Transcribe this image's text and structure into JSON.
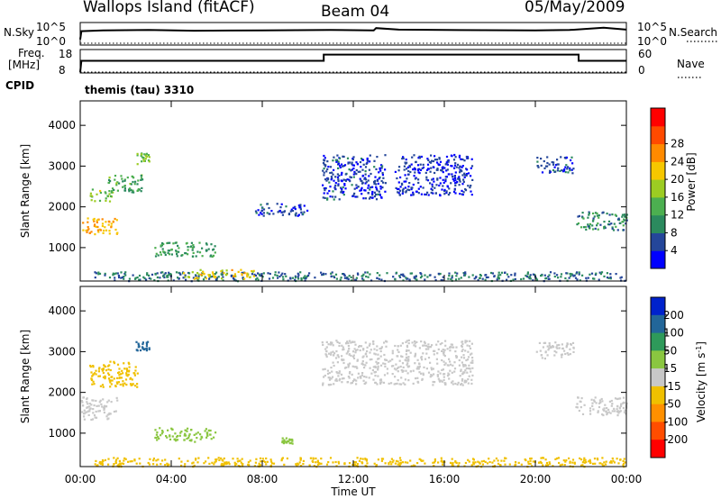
{
  "header": {
    "title": "Wallops Island (fitACF)",
    "beam": "Beam 04",
    "date": "05/May/2009"
  },
  "side_labels": {
    "nsky": "N.Sky",
    "nsearch": "N.Search",
    "freq_top": "Freq.",
    "freq_unit": "[MHz]",
    "cpid": "CPID",
    "nave": "Nave"
  },
  "cpid_text": "themis (tau) 3310",
  "chart_data": [
    {
      "type": "line",
      "panel": "noise",
      "left_ticks": [
        "10^5",
        "10^0"
      ],
      "right_ticks": [
        "10^5",
        "10^0"
      ],
      "series": [
        {
          "name": "N.Sky",
          "x": [
            0,
            0.05,
            1,
            3,
            5,
            8,
            11,
            12.9,
            13,
            14,
            16,
            20,
            21.5,
            23,
            24
          ],
          "y": [
            1,
            3.2,
            3.4,
            3.5,
            3.3,
            3.4,
            3.5,
            3.4,
            4.0,
            3.6,
            3.5,
            3.4,
            3.5,
            4.1,
            3.6
          ]
        },
        {
          "name": "N.Search",
          "x": [
            0,
            24
          ],
          "y": [
            0,
            0
          ]
        }
      ]
    },
    {
      "type": "line",
      "panel": "frequency",
      "left_ticks": [
        "18",
        "8"
      ],
      "right_ticks": [
        "60",
        "0"
      ],
      "series": [
        {
          "name": "Freq.",
          "x": [
            0,
            0.05,
            10.7,
            10.7,
            21.9,
            21.9,
            24
          ],
          "y": [
            0,
            10.9,
            10.9,
            16.9,
            16.9,
            10.9,
            10.9
          ]
        },
        {
          "name": "Nave",
          "x": [
            0,
            24
          ],
          "y": [
            0,
            0
          ]
        }
      ]
    },
    {
      "type": "heatmap",
      "panel": "power",
      "ylabel": "Slant Range [km]",
      "yticks": [
        "1000",
        "2000",
        "3000",
        "4000"
      ],
      "ylim": [
        180,
        4600
      ],
      "xlim": [
        0,
        24
      ],
      "colorbar": {
        "label": "Power [dB]",
        "ticks": [
          "4",
          "8",
          "12",
          "16",
          "20",
          "24",
          "28"
        ],
        "colors": [
          "#0000ff",
          "#24469a",
          "#2b8a5e",
          "#4caf50",
          "#9ccc22",
          "#f6c700",
          "#ff8a00",
          "#ff4a00",
          "#ff0000"
        ]
      },
      "regions": [
        {
          "t": [
            0,
            1.6
          ],
          "r": [
            1350,
            1750
          ],
          "value": 24
        },
        {
          "t": [
            0.4,
            1.4
          ],
          "r": [
            2150,
            2450
          ],
          "value": 17
        },
        {
          "t": [
            1.2,
            2.7
          ],
          "r": [
            2350,
            2800
          ],
          "value": 13
        },
        {
          "t": [
            2.4,
            3.0
          ],
          "r": [
            3050,
            3350
          ],
          "value": 16
        },
        {
          "t": [
            3.2,
            5.9
          ],
          "r": [
            800,
            1150
          ],
          "value": 12
        },
        {
          "t": [
            0.6,
            23.9
          ],
          "r": [
            200,
            420
          ],
          "value": 8
        },
        {
          "t": [
            4.5,
            7.6
          ],
          "r": [
            250,
            480
          ],
          "value": 21
        },
        {
          "t": [
            10.6,
            13.4
          ],
          "r": [
            2200,
            3300
          ],
          "value": 5
        },
        {
          "t": [
            13.8,
            17.2
          ],
          "r": [
            2300,
            3300
          ],
          "value": 4
        },
        {
          "t": [
            20.0,
            21.7
          ],
          "r": [
            2850,
            3250
          ],
          "value": 6
        },
        {
          "t": [
            21.7,
            24.0
          ],
          "r": [
            1450,
            1900
          ],
          "value": 10
        },
        {
          "t": [
            7.5,
            10.0
          ],
          "r": [
            1800,
            2100
          ],
          "value": 5
        }
      ]
    },
    {
      "type": "heatmap",
      "panel": "velocity",
      "xlabel": "Time UT",
      "ylabel": "Slant Range [km]",
      "xticks": [
        "00:00",
        "04:00",
        "08:00",
        "12:00",
        "16:00",
        "20:00",
        "00:00"
      ],
      "yticks": [
        "1000",
        "2000",
        "3000",
        "4000"
      ],
      "ylim": [
        180,
        4600
      ],
      "xlim": [
        0,
        24
      ],
      "colorbar": {
        "label": "Velocity [m s^-1]",
        "ticks": [
          "200",
          "100",
          "50",
          "15",
          "-15",
          "-50",
          "-100",
          "-200"
        ],
        "colors": [
          "#0022cc",
          "#226699",
          "#2e9a5a",
          "#8ac640",
          "#c8c8c8",
          "#f0c000",
          "#ff9000",
          "#ff4d00",
          "#ff0000"
        ]
      },
      "regions": [
        {
          "t": [
            0,
            1.6
          ],
          "r": [
            1350,
            1900
          ],
          "value": 0
        },
        {
          "t": [
            0.4,
            2.5
          ],
          "r": [
            2150,
            2800
          ],
          "value": -40
        },
        {
          "t": [
            2.4,
            3.0
          ],
          "r": [
            3050,
            3350
          ],
          "value": 150
        },
        {
          "t": [
            3.2,
            5.9
          ],
          "r": [
            800,
            1150
          ],
          "value": 40
        },
        {
          "t": [
            0.6,
            23.9
          ],
          "r": [
            200,
            420
          ],
          "value": -30
        },
        {
          "t": [
            10.6,
            17.2
          ],
          "r": [
            2200,
            3300
          ],
          "value": 0
        },
        {
          "t": [
            20.0,
            21.7
          ],
          "r": [
            2850,
            3250
          ],
          "value": 0
        },
        {
          "t": [
            21.7,
            24.0
          ],
          "r": [
            1450,
            1900
          ],
          "value": 0
        },
        {
          "t": [
            8.8,
            9.3
          ],
          "r": [
            750,
            900
          ],
          "value": 40
        }
      ]
    }
  ]
}
